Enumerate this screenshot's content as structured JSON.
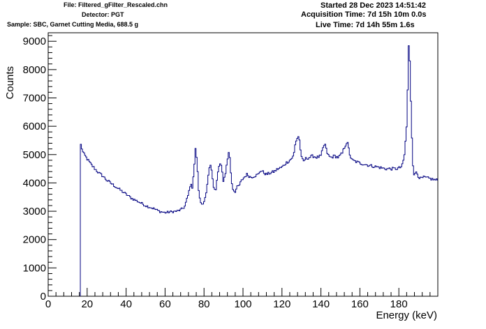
{
  "header": {
    "file": "File: Filtered_gFilter_Rescaled.chn",
    "detector": "Detector: PGT",
    "sample": "Sample: SBC, Garnet Cutting Media, 688.5 g",
    "started": "Started 28 Dec 2023 14:51:42",
    "acquisition": "Acquisition Time: 7d 15h 10m 0.0s",
    "live": "Live Time: 7d 14h 55m 1.6s"
  },
  "chart_data": {
    "type": "line",
    "xlabel": "Energy (keV)",
    "ylabel": "Counts",
    "xlim": [
      0,
      200
    ],
    "ylim": [
      0,
      9300
    ],
    "x_ticks": [
      0,
      20,
      40,
      60,
      80,
      100,
      120,
      140,
      160,
      180
    ],
    "y_ticks": [
      0,
      1000,
      2000,
      3000,
      4000,
      5000,
      6000,
      7000,
      8000,
      9000
    ],
    "grid": false,
    "line_color": "#000080",
    "series": [
      {
        "x": [
          16.5,
          17,
          18,
          20,
          22,
          24,
          26,
          28,
          30,
          32,
          35,
          38,
          40,
          43,
          46,
          50,
          54,
          57,
          60,
          63,
          66,
          68,
          70,
          72,
          73,
          74,
          75,
          75.7,
          76.5,
          77,
          77.5,
          78,
          79,
          80,
          81,
          82,
          83,
          84,
          85,
          86,
          87,
          88,
          89,
          90,
          91,
          92,
          92.8,
          93.5,
          94,
          95,
          96,
          97,
          98,
          99,
          100,
          102,
          104,
          106,
          108,
          109,
          110,
          112,
          114,
          116,
          118,
          120,
          122,
          124,
          126,
          127,
          128,
          128.5,
          129,
          130,
          131,
          132,
          134,
          136,
          138,
          140,
          141,
          142,
          143,
          144,
          145,
          147,
          149,
          151,
          152,
          153,
          153.5,
          154,
          155,
          156,
          158,
          160,
          163,
          166,
          170,
          173,
          176,
          179,
          181,
          182,
          183,
          184,
          184.5,
          185,
          185.5,
          186,
          186.5,
          187,
          187.5,
          188,
          189,
          190,
          191,
          193,
          196,
          199
        ],
        "y": [
          5400,
          5300,
          5050,
          4850,
          4650,
          4500,
          4350,
          4250,
          4100,
          4000,
          3850,
          3700,
          3600,
          3450,
          3350,
          3200,
          3100,
          3000,
          2950,
          2980,
          3000,
          3050,
          3150,
          3600,
          3950,
          3850,
          4600,
          5250,
          4700,
          3950,
          3600,
          3350,
          3250,
          3350,
          3550,
          4100,
          4650,
          4450,
          3850,
          3700,
          4300,
          4700,
          4550,
          4050,
          4350,
          4800,
          5150,
          4700,
          4100,
          3750,
          3700,
          3850,
          3900,
          4050,
          4150,
          4300,
          4200,
          4250,
          4300,
          4450,
          4400,
          4300,
          4350,
          4400,
          4500,
          4550,
          4700,
          4800,
          4950,
          5450,
          5600,
          5650,
          5500,
          4900,
          4750,
          4850,
          4900,
          4950,
          4900,
          4950,
          5200,
          5400,
          5100,
          4950,
          4900,
          4950,
          4900,
          5050,
          5250,
          5400,
          5450,
          5300,
          4950,
          4800,
          4750,
          4700,
          4650,
          4600,
          4550,
          4500,
          4500,
          4500,
          4550,
          4650,
          5050,
          6000,
          7200,
          8850,
          8600,
          7300,
          6200,
          4900,
          4450,
          4250,
          4400,
          4250,
          4150,
          4200,
          4150,
          4100
        ]
      }
    ]
  }
}
